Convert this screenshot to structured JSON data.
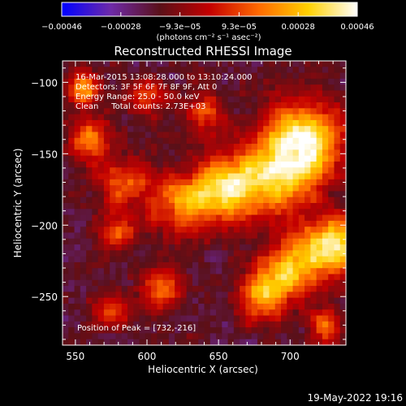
{
  "chart_data": {
    "type": "heatmap",
    "title": "Reconstructed RHESSI Image",
    "xlabel": "Heliocentric X (arcsec)",
    "ylabel": "Heliocentric Y (arcsec)",
    "xlim": [
      541,
      739
    ],
    "ylim": [
      -284,
      -85
    ],
    "xticks": [
      {
        "value": 550,
        "label": "550"
      },
      {
        "value": 600,
        "label": "600"
      },
      {
        "value": 650,
        "label": "650"
      },
      {
        "value": 700,
        "label": "700"
      }
    ],
    "yticks": [
      {
        "value": -100,
        "label": "−100"
      },
      {
        "value": -150,
        "label": "−150"
      },
      {
        "value": -200,
        "label": "−200"
      },
      {
        "value": -250,
        "label": "−250"
      }
    ],
    "colorbar": {
      "range": [
        -0.00046,
        0.00046
      ],
      "tick_labels": [
        "−0.00046",
        "−0.00028",
        "−9.3e−05",
        "9.3e−05",
        "0.00028",
        "0.00046"
      ],
      "units_label": "(photons cm⁻² s⁻¹ asec⁻²)"
    },
    "colormap_stops": [
      "#0000ff",
      "#6e2aa8",
      "#5a1018",
      "#c40000",
      "#ff6a00",
      "#ffd000",
      "#ffffff"
    ],
    "annotations": [
      "16-Mar-2015 13:08:28.000 to 13:10:24.000",
      "Detectors: 3F 5F 6F 7F 8F 9F, Att 0",
      "Energy Range: 25.0 - 50.0 keV",
      "Clean     Total counts: 2.73E+03"
    ],
    "peak_label": "Position of Peak = [732,-216]",
    "peak_position": [
      732,
      -216
    ],
    "sources": [
      {
        "x": 730,
        "y": -215,
        "amp": 1.0,
        "sigma": 14
      },
      {
        "x": 712,
        "y": -140,
        "amp": 0.95,
        "sigma": 18
      },
      {
        "x": 690,
        "y": -165,
        "amp": 0.8,
        "sigma": 20
      },
      {
        "x": 655,
        "y": -175,
        "amp": 0.8,
        "sigma": 16
      },
      {
        "x": 625,
        "y": -185,
        "amp": 0.6,
        "sigma": 15
      },
      {
        "x": 585,
        "y": -170,
        "amp": 0.55,
        "sigma": 13
      },
      {
        "x": 560,
        "y": -140,
        "amp": 0.6,
        "sigma": 10
      },
      {
        "x": 555,
        "y": -105,
        "amp": 0.7,
        "sigma": 8
      },
      {
        "x": 700,
        "y": -230,
        "amp": 0.8,
        "sigma": 14
      },
      {
        "x": 680,
        "y": -250,
        "amp": 0.7,
        "sigma": 12
      },
      {
        "x": 610,
        "y": -245,
        "amp": 0.55,
        "sigma": 10
      },
      {
        "x": 575,
        "y": -260,
        "amp": 0.5,
        "sigma": 9
      },
      {
        "x": 640,
        "y": -120,
        "amp": 0.5,
        "sigma": 10
      },
      {
        "x": 600,
        "y": -110,
        "amp": 0.4,
        "sigma": 10
      },
      {
        "x": 725,
        "y": -270,
        "amp": 0.5,
        "sigma": 8
      },
      {
        "x": 580,
        "y": -205,
        "amp": 0.45,
        "sigma": 9
      }
    ],
    "grid": false,
    "legend": "none"
  },
  "timestamp": "19-May-2022 19:16"
}
